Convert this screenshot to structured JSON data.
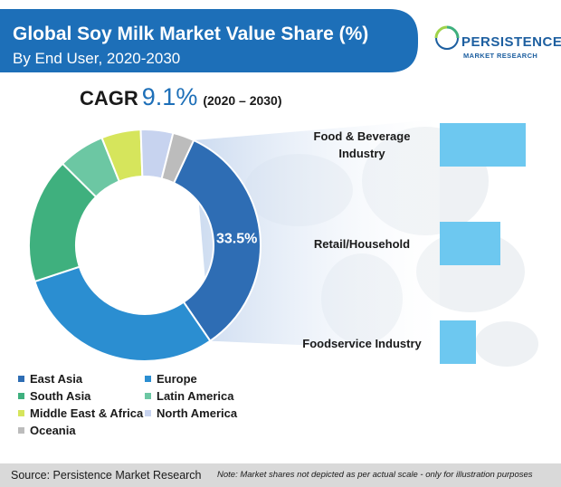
{
  "header": {
    "title": "Global Soy Milk Market Value Share (%)",
    "subtitle": "By End User, 2020-2030",
    "banner_color": "#1d6fb8"
  },
  "logo": {
    "word": "PERSISTENCE",
    "sub": "MARKET RESEARCH",
    "icon": "persistence-logo-icon"
  },
  "cagr": {
    "label": "CAGR",
    "value": "9.1%",
    "period": "(2020 – 2030)"
  },
  "chart_data": [
    {
      "type": "pie",
      "donut": true,
      "categories": [
        "East Asia",
        "Europe",
        "South Asia",
        "Latin America",
        "Middle East & Africa",
        "North America",
        "Oceania"
      ],
      "values": [
        33.5,
        29.5,
        17.5,
        6.5,
        5.5,
        4.5,
        3.0
      ],
      "colors": [
        "#2e6db4",
        "#2b8ed1",
        "#3fb07e",
        "#6cc7a3",
        "#d6e55c",
        "#c7d3ef",
        "#bcbcbc"
      ],
      "data_labels": [
        "33.5%",
        "",
        "",
        "",
        "",
        "",
        ""
      ],
      "legend": "bottom-left"
    },
    {
      "type": "bar",
      "orientation": "horizontal",
      "categories": [
        "Food & Beverage Industry",
        "Retail/Household",
        "Foodservice Industry"
      ],
      "values": [
        95,
        67,
        40
      ],
      "color": "#6dc8f0"
    }
  ],
  "legend_items": [
    {
      "label": "East Asia",
      "color": "#2e6db4"
    },
    {
      "label": "Europe",
      "color": "#2b8ed1"
    },
    {
      "label": "South Asia",
      "color": "#3fb07e"
    },
    {
      "label": "Latin America",
      "color": "#6cc7a3"
    },
    {
      "label": "Middle East & Africa",
      "color": "#d6e55c"
    },
    {
      "label": "North America",
      "color": "#c7d3ef"
    },
    {
      "label": "Oceania",
      "color": "#bcbcbc"
    }
  ],
  "footer": {
    "source": "Source: Persistence Market Research",
    "note": "Note: Market shares not depicted as per actual scale - only for illustration purposes"
  }
}
